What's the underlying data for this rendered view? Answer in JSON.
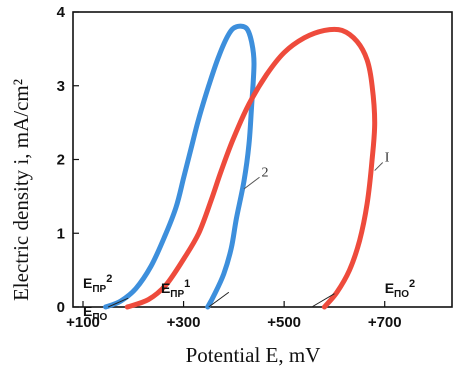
{
  "chart_data": {
    "type": "line",
    "title": "",
    "xlabel": "Potential E, mV",
    "ylabel": "Electric density i, mA/cm²",
    "xlim": [
      100,
      800
    ],
    "ylim": [
      0,
      4
    ],
    "x_ticks": [
      "+100",
      "+300",
      "+500",
      "+700"
    ],
    "x_tick_values": [
      100,
      300,
      500,
      700
    ],
    "y_ticks": [
      "0",
      "1",
      "2",
      "3",
      "4"
    ],
    "y_tick_values": [
      0,
      1,
      2,
      3,
      4
    ],
    "grid": false,
    "series": [
      {
        "name": "2",
        "color": "#3d8fdc",
        "points": [
          [
            145,
            0.0
          ],
          [
            175,
            0.08
          ],
          [
            205,
            0.25
          ],
          [
            235,
            0.55
          ],
          [
            262,
            0.95
          ],
          [
            285,
            1.35
          ],
          [
            300,
            1.75
          ],
          [
            315,
            2.15
          ],
          [
            330,
            2.55
          ],
          [
            350,
            3.0
          ],
          [
            370,
            3.4
          ],
          [
            390,
            3.7
          ],
          [
            405,
            3.8
          ],
          [
            425,
            3.78
          ],
          [
            435,
            3.6
          ],
          [
            440,
            3.3
          ],
          [
            435,
            2.7
          ],
          [
            430,
            2.2
          ],
          [
            420,
            1.7
          ],
          [
            405,
            1.2
          ],
          [
            395,
            0.8
          ],
          [
            380,
            0.45
          ],
          [
            360,
            0.15
          ],
          [
            348,
            0.0
          ]
        ]
      },
      {
        "name": "I",
        "color": "#ee4b3c",
        "points": [
          [
            188,
            0.0
          ],
          [
            230,
            0.1
          ],
          [
            265,
            0.3
          ],
          [
            300,
            0.65
          ],
          [
            330,
            1.0
          ],
          [
            355,
            1.45
          ],
          [
            375,
            1.85
          ],
          [
            400,
            2.3
          ],
          [
            430,
            2.75
          ],
          [
            465,
            3.15
          ],
          [
            500,
            3.45
          ],
          [
            540,
            3.65
          ],
          [
            580,
            3.75
          ],
          [
            615,
            3.75
          ],
          [
            645,
            3.6
          ],
          [
            665,
            3.35
          ],
          [
            675,
            3.0
          ],
          [
            680,
            2.5
          ],
          [
            675,
            2.0
          ],
          [
            665,
            1.4
          ],
          [
            650,
            0.9
          ],
          [
            630,
            0.5
          ],
          [
            605,
            0.2
          ],
          [
            580,
            0.0
          ]
        ]
      }
    ],
    "annotations": [
      {
        "base": "E",
        "sub": "ПР",
        "sup": "2",
        "x": 100,
        "y": 0.26
      },
      {
        "base": "E",
        "sub": "ПО",
        "sup": "",
        "x": 100,
        "y": -0.12
      },
      {
        "base": "E",
        "sub": "ПР",
        "sup": "1",
        "x": 255,
        "y": 0.19
      },
      {
        "base": "E",
        "sub": "ПО",
        "sup": "2",
        "x": 700,
        "y": 0.19
      }
    ]
  }
}
